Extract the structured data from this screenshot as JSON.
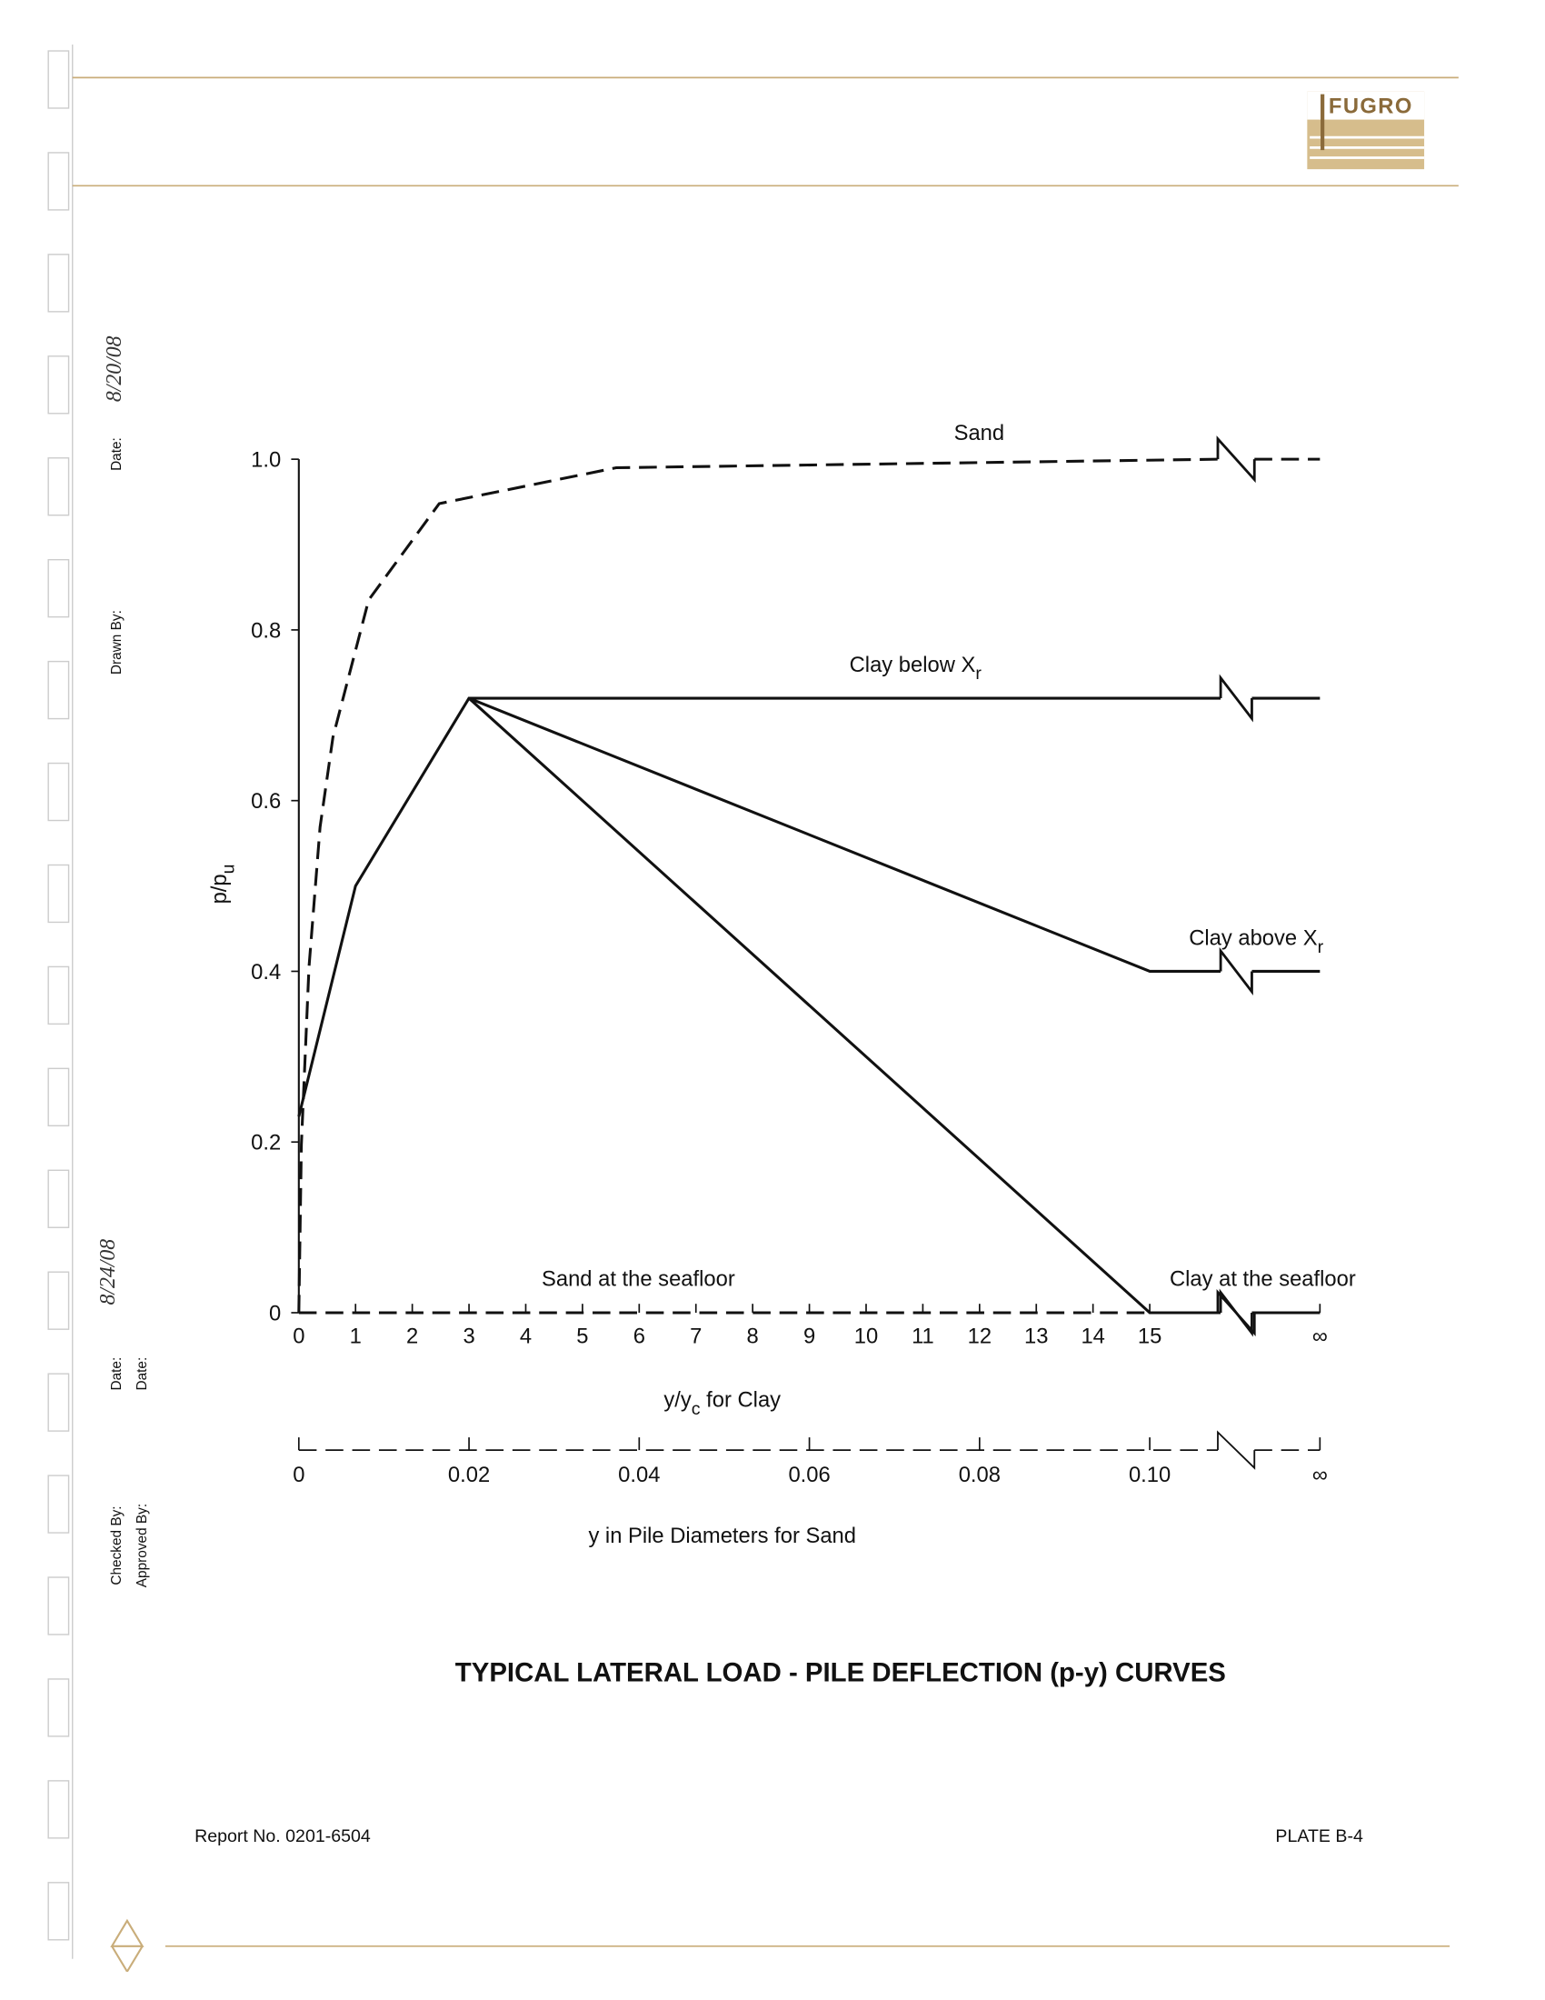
{
  "document": {
    "logo": "FUGRO",
    "title_block": [
      "Date:",
      "Drawn By:",
      "Date:",
      "Date:",
      "Checked By:",
      "Approved By:"
    ],
    "handwritten_dates": [
      "8/20/08",
      "8/24/08"
    ],
    "caption": "TYPICAL LATERAL LOAD - PILE DEFLECTION (p-y) CURVES",
    "report": "Report No. 0201-6504",
    "plate": "PLATE B-4"
  },
  "chart_data": {
    "type": "line",
    "y_label": {
      "text": "p/p",
      "sub": "u"
    },
    "x_label": {
      "text": "y/y",
      "sub": "c",
      "rest": " for Clay"
    },
    "x2_label": "y in Pile Diameters for Sand",
    "xlim": [
      0,
      18
    ],
    "x2lim": [
      0,
      0.12
    ],
    "ylim": [
      0,
      1
    ],
    "xticks": [
      0,
      1,
      2,
      3,
      4,
      5,
      6,
      7,
      8,
      9,
      10,
      11,
      12,
      13,
      14,
      15,
      {
        "value": 18,
        "label": "∞"
      }
    ],
    "x2ticks": [
      0,
      0.02,
      0.04,
      0.06,
      0.08,
      {
        "value": 0.1,
        "label": "0.10"
      },
      {
        "value": 0.12,
        "label": "∞"
      }
    ],
    "yticks": [
      0,
      0.2,
      0.4,
      0.6,
      0.8,
      {
        "value": 1,
        "label": "1.0"
      }
    ],
    "series": [
      {
        "name": "Sand",
        "color": "#111111",
        "dashed": true,
        "axis": "x2",
        "x": [
          0,
          0.0003,
          0.0012,
          0.0025,
          0.004,
          0.0082,
          0.0165,
          0.0373,
          0.108,
          0.11,
          0.1123,
          0.12
        ],
        "values": [
          0,
          0.197,
          0.405,
          0.569,
          0.674,
          0.835,
          0.948,
          0.99,
          1,
          null,
          1,
          1
        ]
      },
      {
        "name": "Clay below X",
        "name_sub": "r",
        "color": "#111111",
        "dashed": false,
        "x": [
          0,
          1,
          3,
          16.25,
          16.4,
          16.8,
          18
        ],
        "values": [
          0.23,
          0.5,
          0.72,
          0.72,
          null,
          0.72,
          0.72
        ]
      },
      {
        "name": "Clay above X",
        "name_sub": "r",
        "color": "#111111",
        "dashed": false,
        "x": [
          3,
          15,
          16.25,
          16.4,
          16.8,
          18
        ],
        "values": [
          0.72,
          0.4,
          0.4,
          null,
          0.4,
          0.4
        ]
      },
      {
        "name": "Sand at the seafloor",
        "color": "#111111",
        "dashed": true,
        "axis": "x2",
        "x": [
          0,
          0.108,
          0.11,
          0.1123,
          0.12
        ],
        "values": [
          0,
          0,
          null,
          0,
          0
        ]
      },
      {
        "name": "Clay at the seafloor",
        "color": "#111111",
        "dashed": false,
        "x": [
          3,
          15,
          16.25,
          16.4,
          16.8,
          18
        ],
        "values": [
          0.72,
          0,
          0,
          null,
          0,
          0
        ]
      }
    ]
  }
}
